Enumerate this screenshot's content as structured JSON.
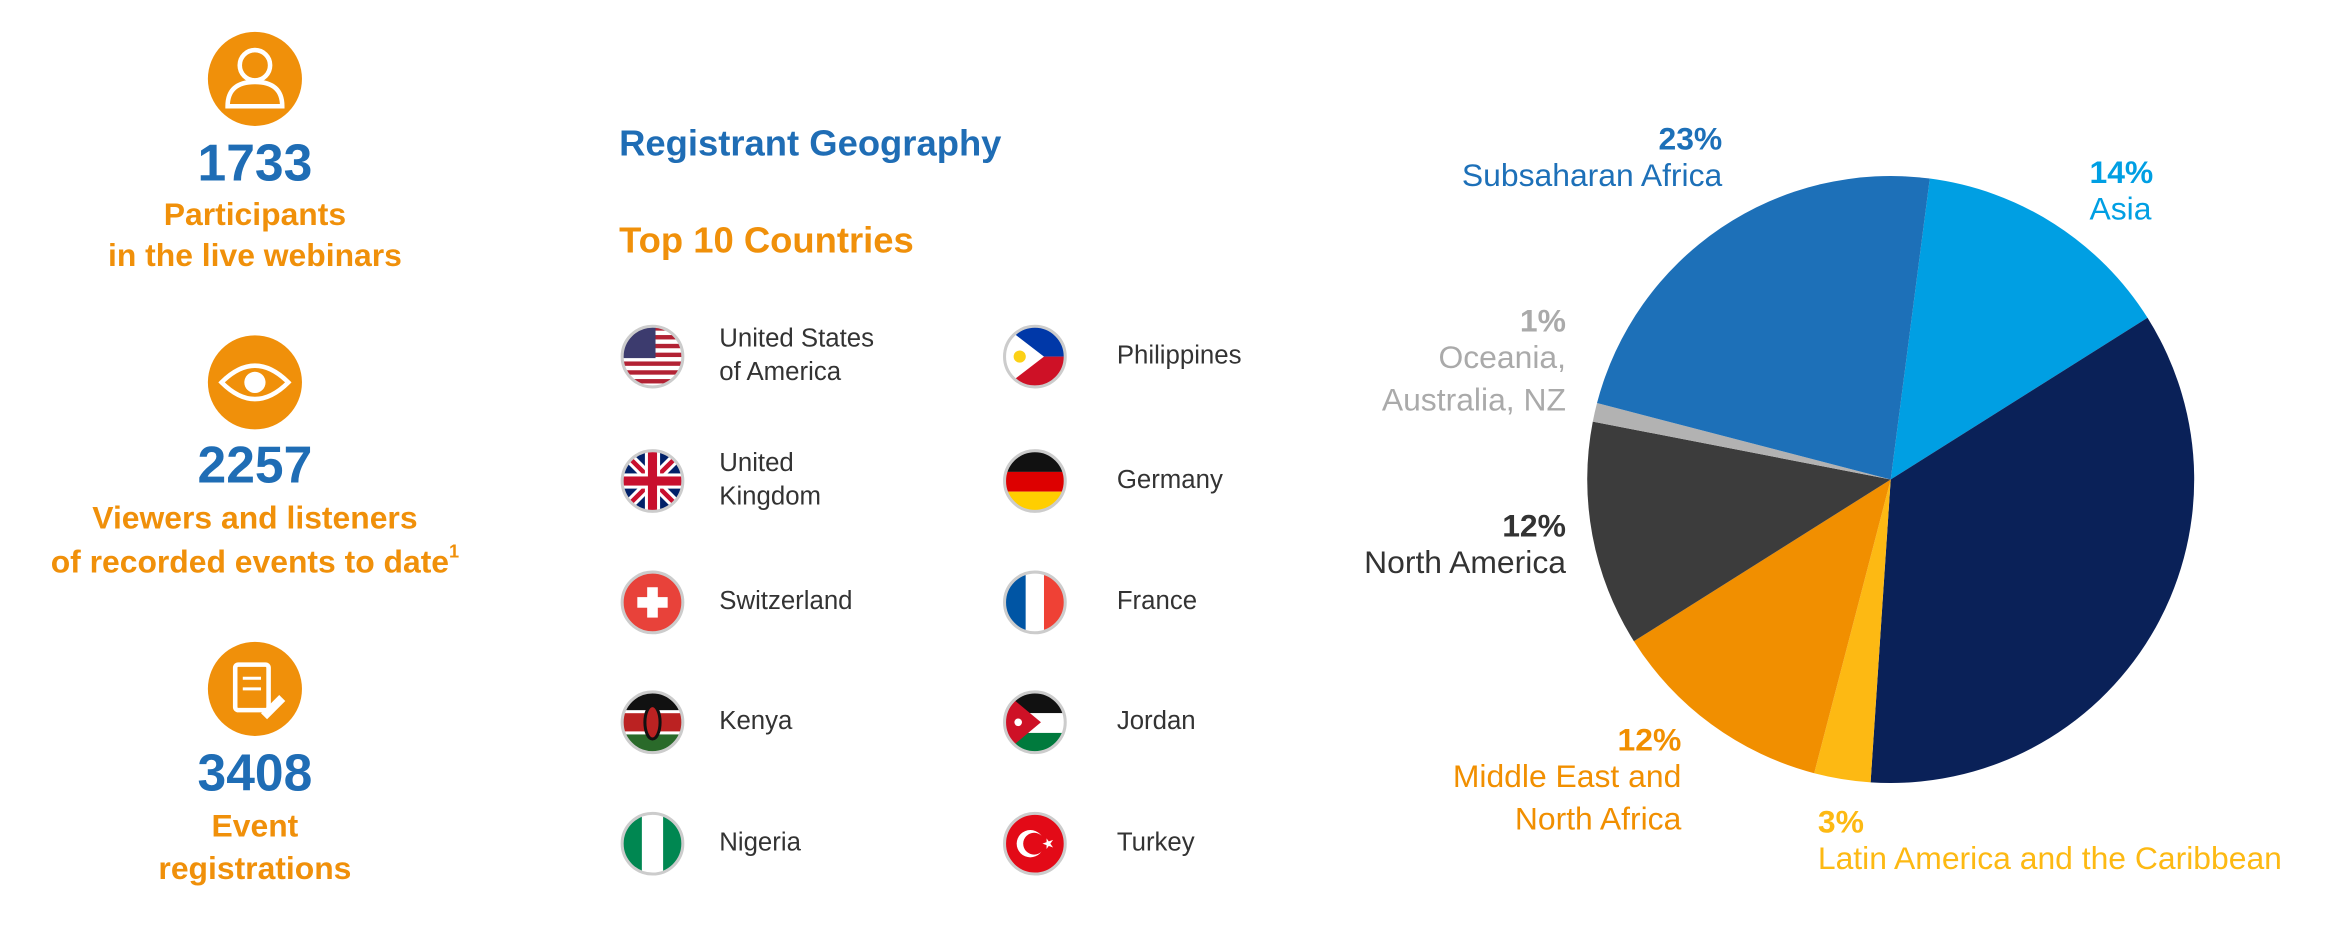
{
  "stats": [
    {
      "value": "1733",
      "lines": [
        "Participants",
        "in the live webinars"
      ]
    },
    {
      "value": "2257",
      "lines": [
        "Viewers and listeners",
        "of recorded events to date"
      ],
      "footnote": "1"
    },
    {
      "value": "3408",
      "lines": [
        "Event",
        "registrations"
      ]
    }
  ],
  "geography": {
    "title": "Registrant Geography",
    "subtitle": "Top 10 Countries",
    "countries": [
      [
        "United States",
        "of America"
      ],
      [
        "United",
        "Kingdom"
      ],
      [
        "Switzerland"
      ],
      [
        "Kenya"
      ],
      [
        "Nigeria"
      ],
      [
        "Philippines"
      ],
      [
        "Germany"
      ],
      [
        "France"
      ],
      [
        "Jordan"
      ],
      [
        "Turkey"
      ]
    ]
  },
  "chart_data": {
    "type": "pie",
    "categories": [
      [
        "Asia"
      ],
      null,
      [
        "Latin America and the Caribbean"
      ],
      [
        "Middle East and",
        "North Africa"
      ],
      [
        "North America"
      ],
      [
        "Oceania,",
        "Australia, NZ"
      ],
      [
        "Subsaharan Africa"
      ]
    ],
    "values": [
      14,
      35,
      3,
      12,
      12,
      1,
      23
    ],
    "value_labels": [
      "14%",
      null,
      "3%",
      "12%",
      "12%",
      "1%",
      "23%"
    ],
    "colors": [
      "#009fe3",
      "#0a2158",
      "#fdb913",
      "#f18f00",
      "#3c3c3c",
      "#b2b2b2",
      "#1d70b8"
    ]
  }
}
